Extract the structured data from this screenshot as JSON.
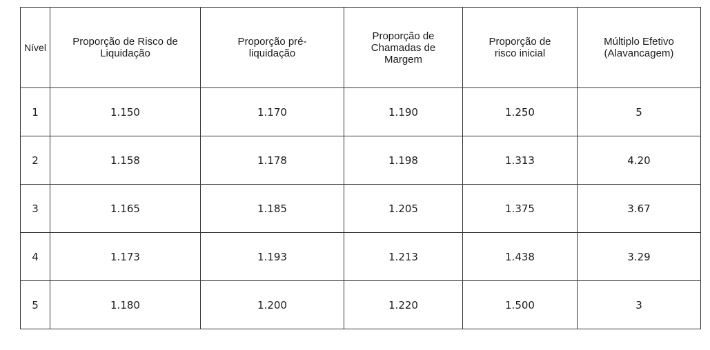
{
  "table": {
    "headers": [
      [
        "Nível"
      ],
      [
        "Proporção de Risco de",
        "Liquidação"
      ],
      [
        "Proporção pré-",
        "liquidação"
      ],
      [
        "Proporção de",
        "Chamadas de",
        "Margem"
      ],
      [
        "Proporção de",
        "risco inicial"
      ],
      [
        "Múltiplo Efetivo",
        "(Alavancagem)"
      ]
    ],
    "rows": [
      [
        "1",
        "1.150",
        "1.170",
        "1.190",
        "1.250",
        "5"
      ],
      [
        "2",
        "1.158",
        "1.178",
        "1.198",
        "1.313",
        "4.20"
      ],
      [
        "3",
        "1.165",
        "1.185",
        "1.205",
        "1.375",
        "3.67"
      ],
      [
        "4",
        "1.173",
        "1.193",
        "1.213",
        "1.438",
        "3.29"
      ],
      [
        "5",
        "1.180",
        "1.200",
        "1.220",
        "1.500",
        "3"
      ]
    ]
  }
}
